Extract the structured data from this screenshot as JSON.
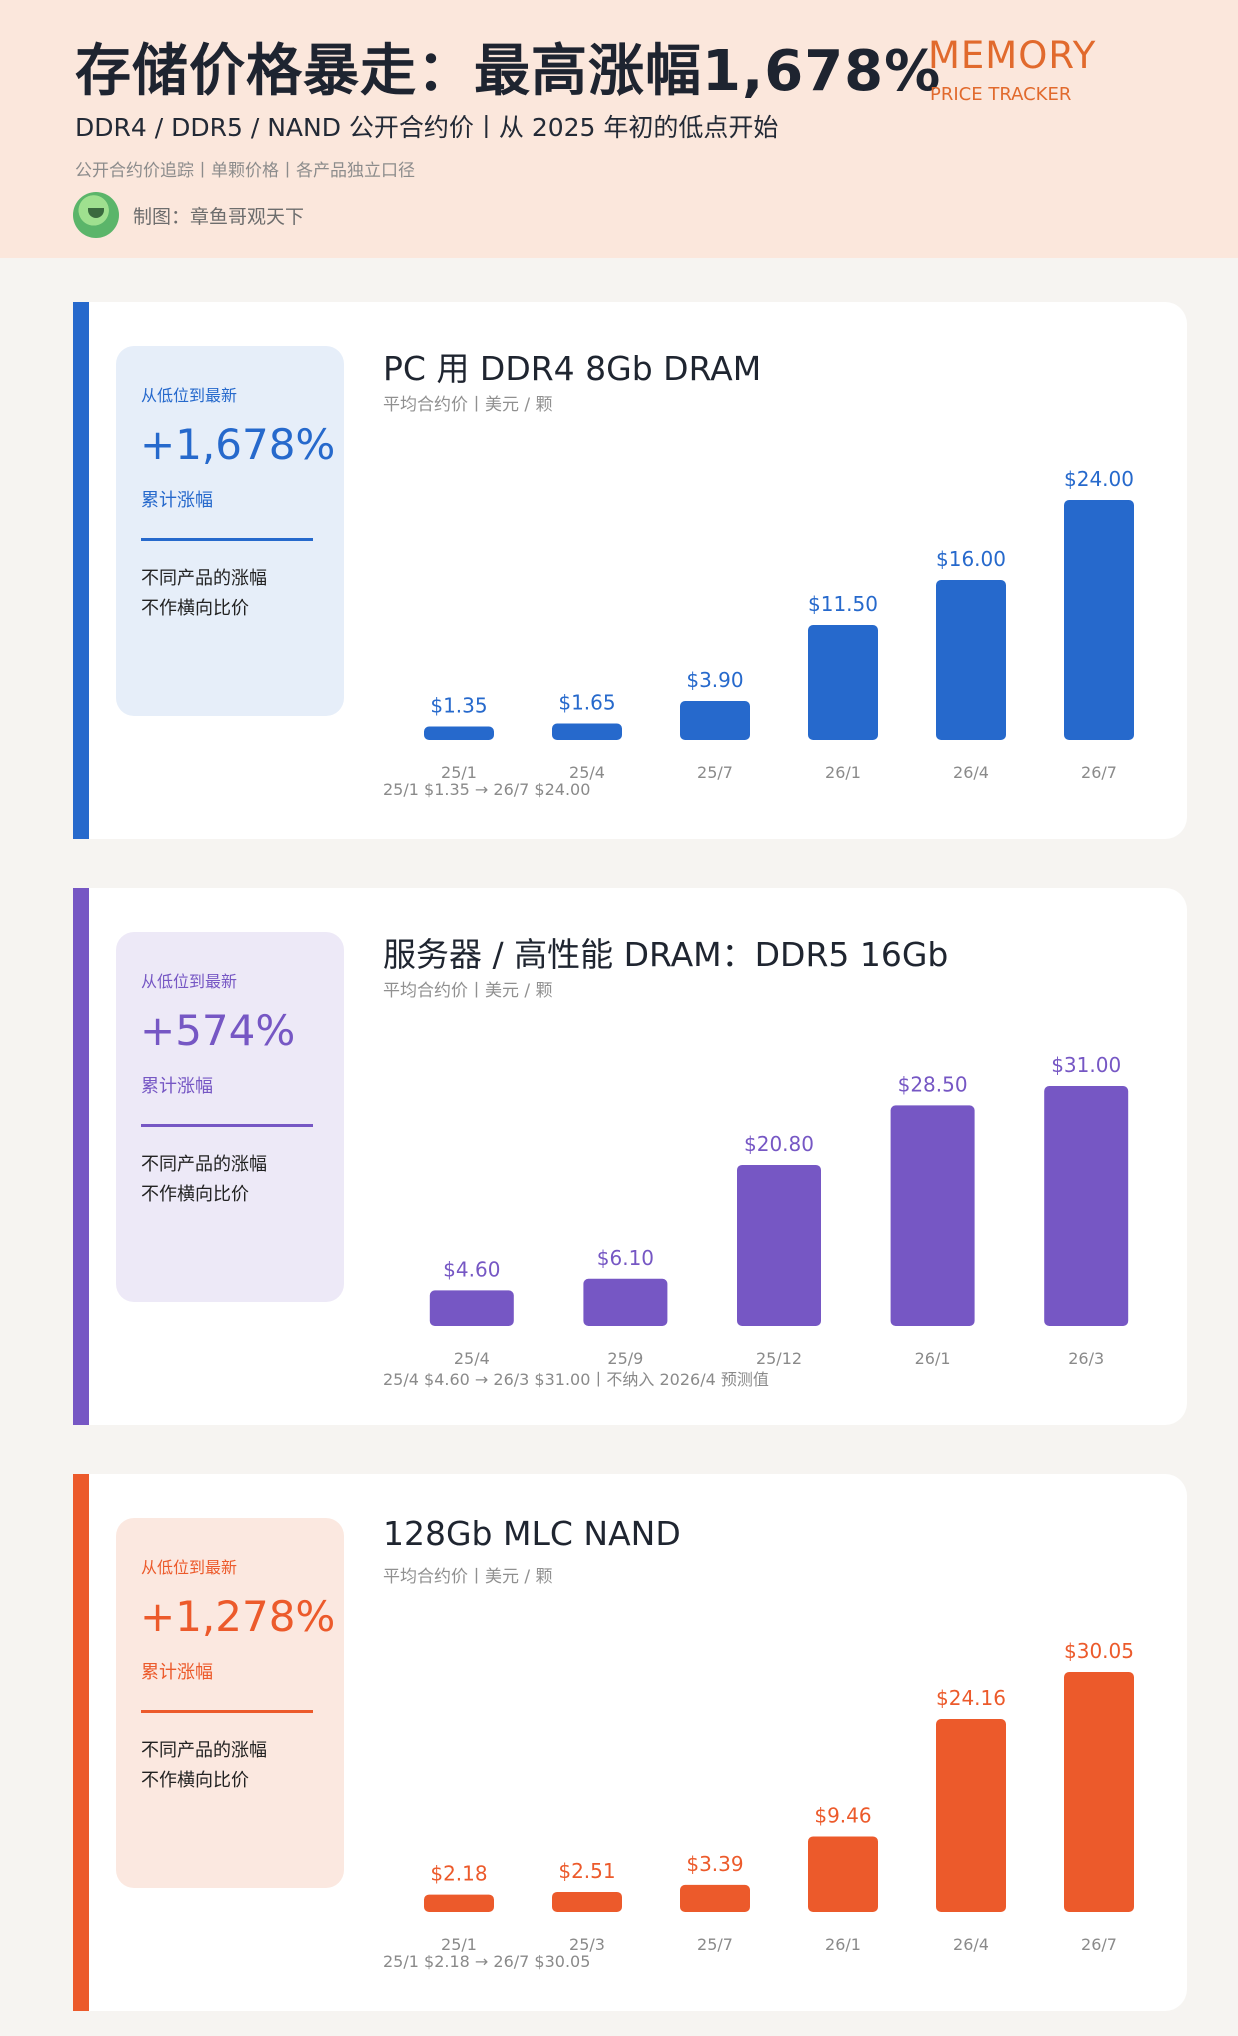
{
  "header": {
    "title": "存储价格暴走：最高涨幅1,678%",
    "subtitle": "DDR4 / DDR5 / NAND 公开合约价丨从 2025 年初的低点开始",
    "tagline": "公开合约价追踪丨单颗价格丨各产品独立口径",
    "author": "制图：章鱼哥观天下",
    "brand": "MEMORY",
    "brand_sub": "PRICE TRACKER"
  },
  "colors": {
    "ddr4": "#2669cc",
    "ddr5": "#7657c4",
    "nand": "#ec5a2b"
  },
  "cards": [
    {
      "side_label": "从低位到最新",
      "pct": "+1,678%",
      "side_sub": "累计涨幅",
      "note_1": "不同产品的涨幅",
      "note_2": "不作横向比价",
      "title": "PC 用 DDR4 8Gb DRAM",
      "unit": "平均合约价丨美元 / 颗",
      "footnote": "25/1 $1.35 → 26/7 $24.00"
    },
    {
      "side_label": "从低位到最新",
      "pct": "+574%",
      "side_sub": "累计涨幅",
      "note_1": "不同产品的涨幅",
      "note_2": "不作横向比价",
      "title": "服务器 / 高性能 DRAM：DDR5 16Gb",
      "unit": "平均合约价丨美元 / 颗",
      "footnote": "25/4 $4.60 → 26/3 $31.00丨不纳入 2026/4 预测值"
    },
    {
      "side_label": "从低位到最新",
      "pct": "+1,278%",
      "side_sub": "累计涨幅",
      "note_1": "不同产品的涨幅",
      "note_2": "不作横向比价",
      "title": "128Gb MLC NAND",
      "unit": "平均合约价丨美元 / 颗",
      "footnote": "25/1 $2.18 → 26/7 $30.05"
    }
  ],
  "chart_data": [
    {
      "type": "bar",
      "title": "PC 用 DDR4 8Gb DRAM",
      "ylabel": "平均合约价丨美元 / 颗",
      "categories": [
        "25/1",
        "25/4",
        "25/7",
        "26/1",
        "26/4",
        "26/7"
      ],
      "values": [
        1.35,
        1.65,
        3.9,
        11.5,
        16.0,
        24.0
      ],
      "labels": [
        "$1.35",
        "$1.65",
        "$3.90",
        "$11.50",
        "$16.00",
        "$24.00"
      ],
      "ylim": [
        0,
        24
      ],
      "grid": false
    },
    {
      "type": "bar",
      "title": "服务器 / 高性能 DRAM：DDR5 16Gb",
      "ylabel": "平均合约价丨美元 / 颗",
      "categories": [
        "25/4",
        "25/9",
        "25/12",
        "26/1",
        "26/3"
      ],
      "values": [
        4.6,
        6.1,
        20.8,
        28.5,
        31.0
      ],
      "labels": [
        "$4.60",
        "$6.10",
        "$20.80",
        "$28.50",
        "$31.00"
      ],
      "ylim": [
        0,
        31
      ],
      "grid": false
    },
    {
      "type": "bar",
      "title": "128Gb MLC NAND",
      "ylabel": "平均合约价丨美元 / 颗",
      "categories": [
        "25/1",
        "25/3",
        "25/7",
        "26/1",
        "26/4",
        "26/7"
      ],
      "values": [
        2.18,
        2.51,
        3.39,
        9.46,
        24.16,
        30.05
      ],
      "labels": [
        "$2.18",
        "$2.51",
        "$3.39",
        "$9.46",
        "$24.16",
        "$30.05"
      ],
      "ylim": [
        0,
        30.05
      ],
      "grid": false
    }
  ]
}
